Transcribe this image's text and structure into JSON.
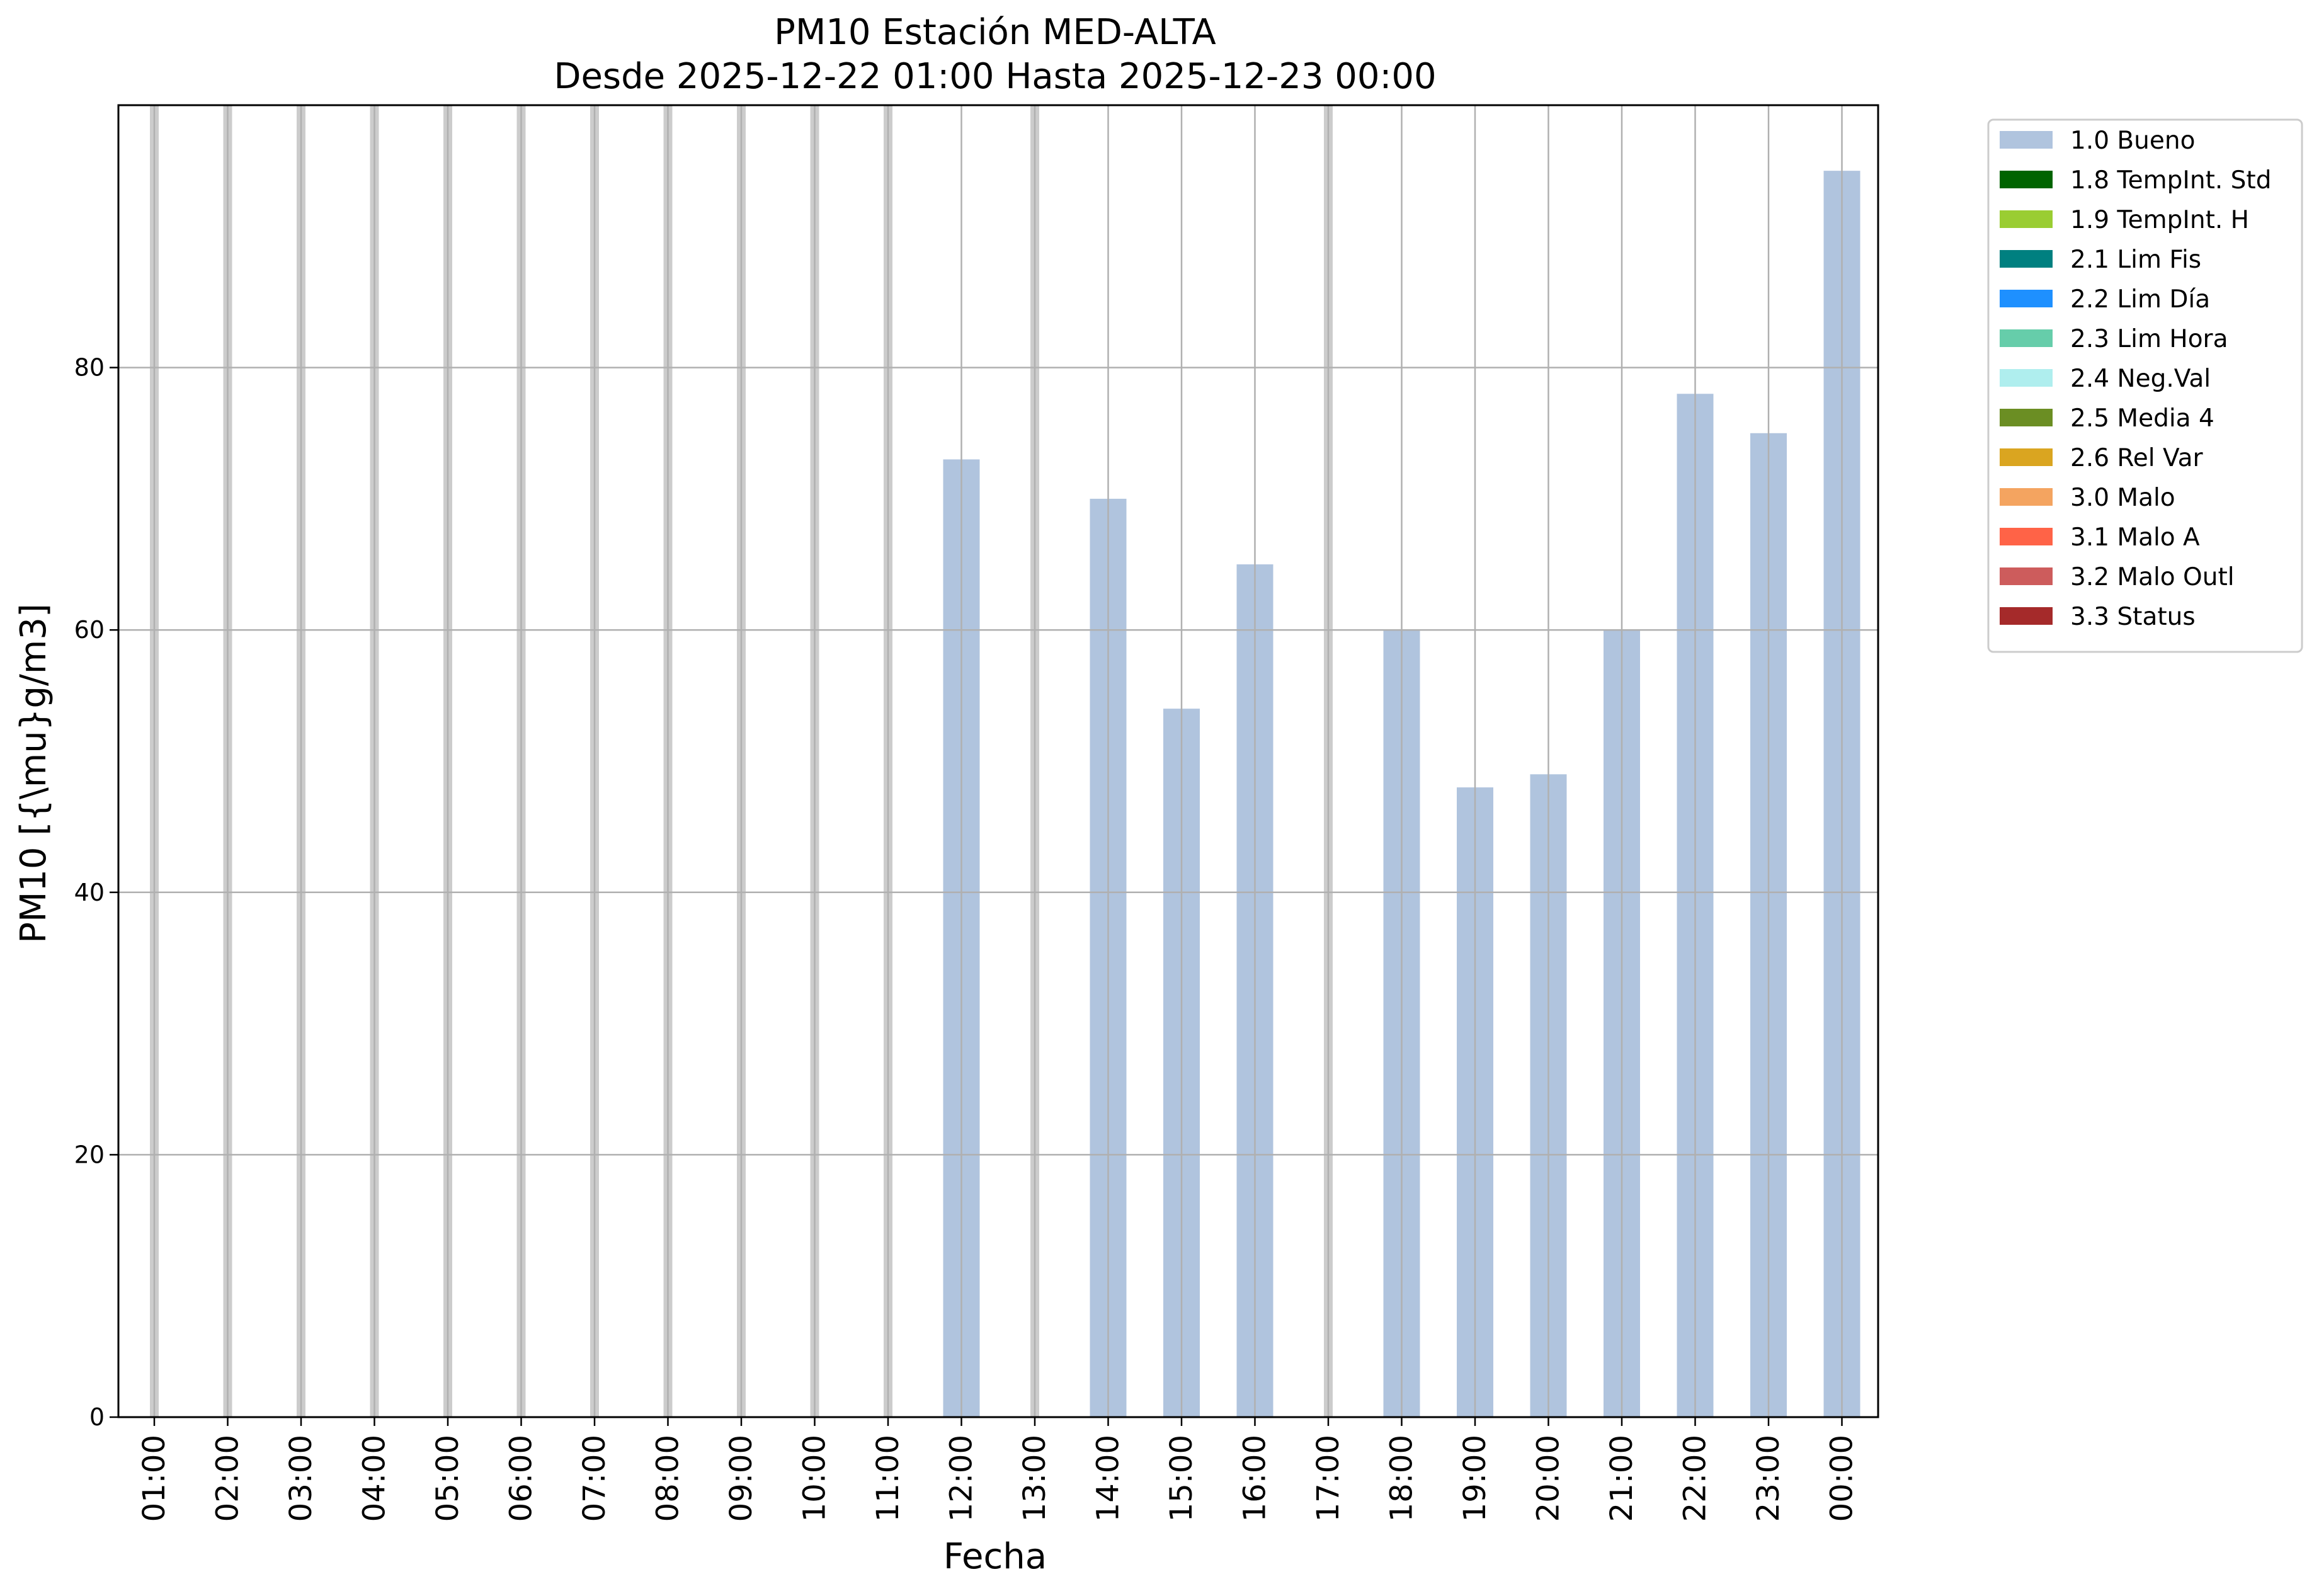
{
  "chart_data": {
    "type": "bar",
    "title": "PM10 Estación MED-ALTA",
    "subtitle": "Desde 2025-12-22 01:00 Hasta 2025-12-23 00:00",
    "xlabel": "Fecha",
    "ylabel": "PM10 [{\\mu}g/m3]",
    "ylim": [
      0,
      100
    ],
    "yticks": [
      0,
      20,
      40,
      60,
      80
    ],
    "grid": true,
    "legend_position": "outside-right",
    "categories": [
      "01:00",
      "02:00",
      "03:00",
      "04:00",
      "05:00",
      "06:00",
      "07:00",
      "08:00",
      "09:00",
      "10:00",
      "11:00",
      "12:00",
      "13:00",
      "14:00",
      "15:00",
      "16:00",
      "17:00",
      "18:00",
      "19:00",
      "20:00",
      "21:00",
      "22:00",
      "23:00",
      "00:00"
    ],
    "series": [
      {
        "name": "1.0 Bueno",
        "color": "#b0c4de",
        "values": [
          null,
          null,
          null,
          null,
          null,
          null,
          null,
          null,
          null,
          null,
          null,
          73,
          null,
          70,
          54,
          65,
          null,
          60,
          48,
          49,
          60,
          78,
          75,
          95
        ]
      }
    ],
    "missing_marker_color": "#cccccc",
    "legend": [
      {
        "label": "1.0 Bueno",
        "color": "#b0c4de"
      },
      {
        "label": "1.8 TempInt. Std",
        "color": "#006400"
      },
      {
        "label": "1.9 TempInt. H",
        "color": "#9acd32"
      },
      {
        "label": "2.1 Lim Fis",
        "color": "#008080"
      },
      {
        "label": "2.2 Lim Día",
        "color": "#1e90ff"
      },
      {
        "label": "2.3 Lim Hora",
        "color": "#66cdaa"
      },
      {
        "label": "2.4 Neg.Val",
        "color": "#afeeee"
      },
      {
        "label": "2.5 Media 4",
        "color": "#6b8e23"
      },
      {
        "label": "2.6 Rel Var",
        "color": "#daa520"
      },
      {
        "label": "3.0 Malo",
        "color": "#f4a460"
      },
      {
        "label": "3.1 Malo A",
        "color": "#ff6347"
      },
      {
        "label": "3.2 Malo Outl",
        "color": "#cd5c5c"
      },
      {
        "label": "3.3 Status",
        "color": "#a52a2a"
      }
    ]
  }
}
